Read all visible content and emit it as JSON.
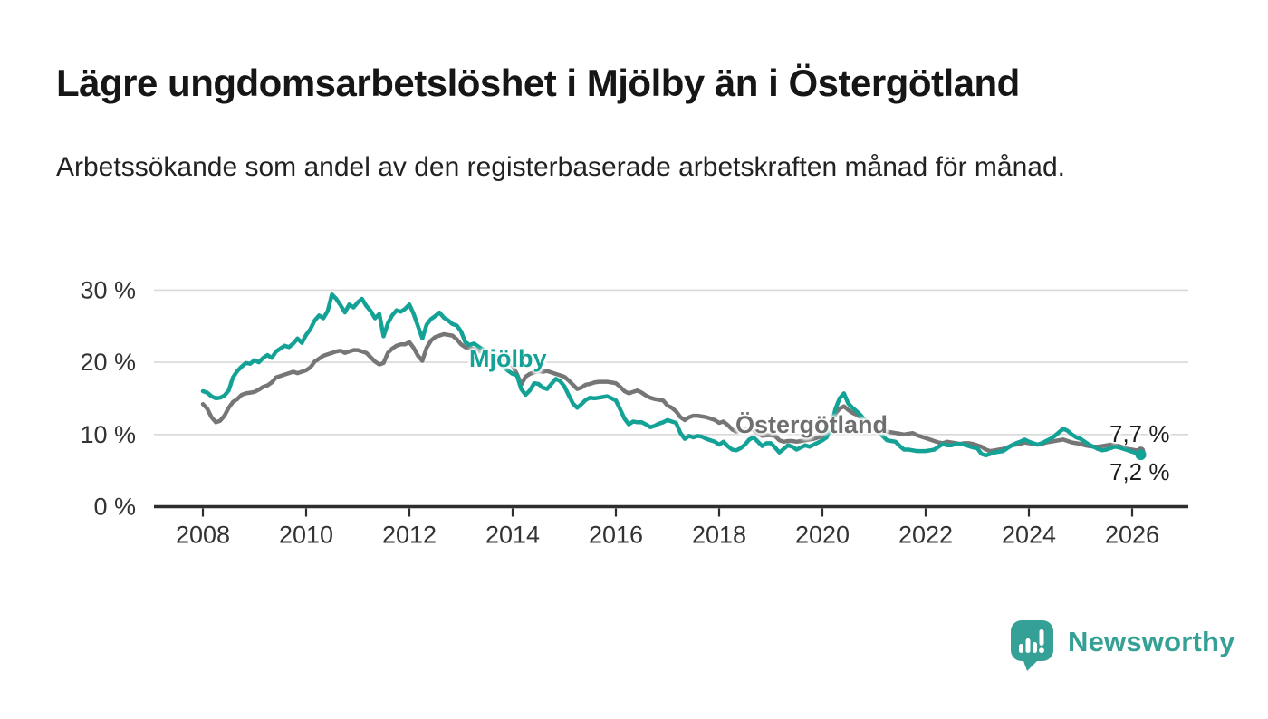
{
  "header": {
    "title": "Lägre ungdomsarbetslöshet i Mjölby än i Östergötland",
    "subtitle": "Arbetssökande som andel av den registerbaserade arbetskraften månad för månad."
  },
  "footer": {
    "brand": "Newsworthy",
    "logo_icon": "speech-bubble-bar-chart-icon",
    "brand_color": "#35a095"
  },
  "chart_data": {
    "type": "line",
    "unit": "%",
    "frequency": "monthly",
    "x_start_year": 2008,
    "x_start_month": 1,
    "x_end_year": 2026,
    "x_end_month": 3,
    "grid": "horizontal",
    "legend_position": "inline-labels",
    "ylim": [
      0,
      31
    ],
    "xticks": [
      2008,
      2010,
      2012,
      2014,
      2016,
      2018,
      2020,
      2022,
      2024,
      2026
    ],
    "yticks": [
      {
        "value": 0,
        "label": "0 %"
      },
      {
        "value": 10,
        "label": "10 %"
      },
      {
        "value": 20,
        "label": "20 %"
      },
      {
        "value": 30,
        "label": "30 %"
      }
    ],
    "colors": {
      "mjolby": "#14a296",
      "ostergotland": "#767676",
      "gridline": "#d8d8d8",
      "axis": "#2e2e2e"
    },
    "series": [
      {
        "name": "Mjölby",
        "color": "#14a296",
        "end_label": "7,2 %",
        "end_value": 7.2,
        "values": [
          16.0,
          15.8,
          15.3,
          15.0,
          15.1,
          15.4,
          16.1,
          17.9,
          18.8,
          19.4,
          19.9,
          19.8,
          20.3,
          20.0,
          20.6,
          21.0,
          20.6,
          21.5,
          21.9,
          22.3,
          22.1,
          22.6,
          23.3,
          22.7,
          23.8,
          24.6,
          25.8,
          26.5,
          26.1,
          27.1,
          29.4,
          28.8,
          27.9,
          26.9,
          28.0,
          27.6,
          28.3,
          28.8,
          27.8,
          27.1,
          26.1,
          26.7,
          23.6,
          25.4,
          26.5,
          27.2,
          27.0,
          27.4,
          28.0,
          26.7,
          25.0,
          23.3,
          25.2,
          26.0,
          26.4,
          26.9,
          26.2,
          25.8,
          25.3,
          25.1,
          24.3,
          22.8,
          22.4,
          22.6,
          22.2,
          21.8,
          21.4,
          21.0,
          20.4,
          19.8,
          19.3,
          18.8,
          18.4,
          18.2,
          16.3,
          15.5,
          16.1,
          17.1,
          17.0,
          16.5,
          16.3,
          17.0,
          17.7,
          17.4,
          16.7,
          15.5,
          14.3,
          13.7,
          14.2,
          14.8,
          15.1,
          15.0,
          15.1,
          15.2,
          15.3,
          15.0,
          14.7,
          13.5,
          12.2,
          11.4,
          11.8,
          11.7,
          11.7,
          11.4,
          11.0,
          11.2,
          11.5,
          11.7,
          12.0,
          11.8,
          11.6,
          10.2,
          9.4,
          9.8,
          9.6,
          9.8,
          9.7,
          9.4,
          9.2,
          9.0,
          8.6,
          9.0,
          8.4,
          7.9,
          7.8,
          8.1,
          8.6,
          9.3,
          9.6,
          9.0,
          8.4,
          8.8,
          8.8,
          8.2,
          7.5,
          8.0,
          8.5,
          8.3,
          7.9,
          8.2,
          8.5,
          8.3,
          8.6,
          8.9,
          9.2,
          9.6,
          11.0,
          13.5,
          15.0,
          15.7,
          14.3,
          13.7,
          13.2,
          12.6,
          11.9,
          11.3,
          10.8,
          10.3,
          9.8,
          9.2,
          9.1,
          9.0,
          8.4,
          7.9,
          7.9,
          7.8,
          7.7,
          7.7,
          7.7,
          7.8,
          7.9,
          8.3,
          8.7,
          8.5,
          8.5,
          8.7,
          8.7,
          8.6,
          8.4,
          8.2,
          8.1,
          7.3,
          7.1,
          7.3,
          7.5,
          7.6,
          7.7,
          8.1,
          8.5,
          8.8,
          9.0,
          9.3,
          9.0,
          8.8,
          8.6,
          8.8,
          9.1,
          9.4,
          9.8,
          10.3,
          10.8,
          10.5,
          10.0,
          9.6,
          9.4,
          9.0,
          8.6,
          8.3,
          8.0,
          7.8,
          7.9,
          8.1,
          8.3,
          8.2,
          8.0,
          7.8,
          7.6,
          7.4,
          7.2
        ]
      },
      {
        "name": "Östergötland",
        "color": "#767676",
        "end_label": "7,7 %",
        "end_value": 7.7,
        "values": [
          14.2,
          13.6,
          12.4,
          11.7,
          11.9,
          12.6,
          13.7,
          14.5,
          14.9,
          15.5,
          15.7,
          15.8,
          15.9,
          16.2,
          16.6,
          16.8,
          17.2,
          17.9,
          18.1,
          18.3,
          18.5,
          18.7,
          18.5,
          18.7,
          18.9,
          19.3,
          20.1,
          20.5,
          20.9,
          21.1,
          21.3,
          21.5,
          21.6,
          21.3,
          21.5,
          21.7,
          21.7,
          21.5,
          21.3,
          20.7,
          20.1,
          19.7,
          19.9,
          21.3,
          21.9,
          22.3,
          22.5,
          22.5,
          22.8,
          22.0,
          20.9,
          20.2,
          22.0,
          23.0,
          23.5,
          23.7,
          23.9,
          23.8,
          23.7,
          23.2,
          22.5,
          22.1,
          22.0,
          21.8,
          21.5,
          21.3,
          21.2,
          21.0,
          20.8,
          20.6,
          20.4,
          19.9,
          19.5,
          18.4,
          16.9,
          18.0,
          18.4,
          18.6,
          18.8,
          18.7,
          18.8,
          18.6,
          18.4,
          18.2,
          18.0,
          17.5,
          16.9,
          16.3,
          16.5,
          16.9,
          17.0,
          17.2,
          17.3,
          17.3,
          17.3,
          17.2,
          17.1,
          16.6,
          16.0,
          15.7,
          15.9,
          16.1,
          15.8,
          15.4,
          15.1,
          14.9,
          14.8,
          14.7,
          14.0,
          13.7,
          13.2,
          12.4,
          12.0,
          12.4,
          12.6,
          12.6,
          12.5,
          12.4,
          12.2,
          12.0,
          11.6,
          11.8,
          11.3,
          10.7,
          10.4,
          10.6,
          10.7,
          10.7,
          10.6,
          10.2,
          9.8,
          9.9,
          9.9,
          9.8,
          9.2,
          9.0,
          9.1,
          9.1,
          9.0,
          9.1,
          9.2,
          9.3,
          9.4,
          9.6,
          9.8,
          10.1,
          11.2,
          12.8,
          13.6,
          13.9,
          13.4,
          13.0,
          12.7,
          12.3,
          11.9,
          11.5,
          11.2,
          11.0,
          10.7,
          10.4,
          10.3,
          10.2,
          10.1,
          10.0,
          10.1,
          10.2,
          9.9,
          9.7,
          9.5,
          9.3,
          9.1,
          8.9,
          8.8,
          9.0,
          8.9,
          8.8,
          8.7,
          8.8,
          8.8,
          8.7,
          8.5,
          8.3,
          7.9,
          7.7,
          7.8,
          7.9,
          8.0,
          8.2,
          8.5,
          8.6,
          8.7,
          8.9,
          8.8,
          8.7,
          8.6,
          8.7,
          8.9,
          9.0,
          9.1,
          9.2,
          9.3,
          9.1,
          8.9,
          8.8,
          8.7,
          8.5,
          8.4,
          8.3,
          8.3,
          8.4,
          8.5,
          8.6,
          8.5,
          8.4,
          8.2,
          8.0,
          7.9,
          7.8,
          7.7
        ]
      }
    ]
  }
}
